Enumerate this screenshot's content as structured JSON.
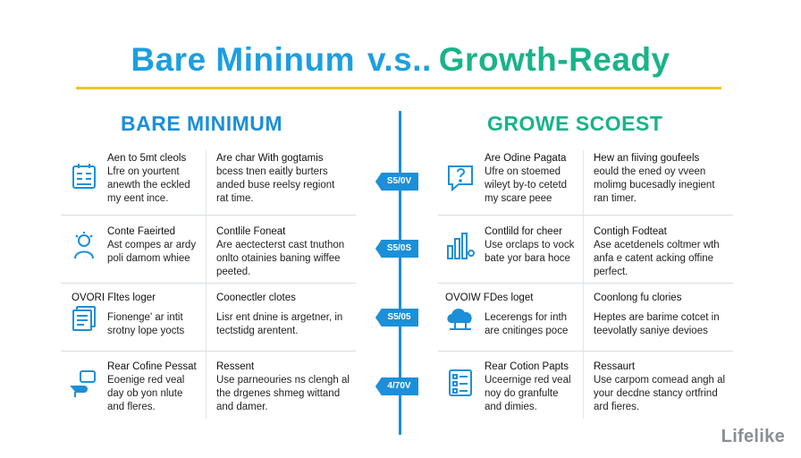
{
  "title": {
    "part1": "Bare Mininum",
    "part2": "v.s..",
    "part3": "Growth-Ready"
  },
  "columns": {
    "left_heading": "BARE MINIMUM",
    "right_heading": "GROWE SCOEST"
  },
  "badges": [
    "S5/0V",
    "S5/0S",
    "S5/05",
    "4/70V"
  ],
  "left_rows": [
    {
      "icon": "checklist-board-icon",
      "a_lines": [
        "Aen to 5mt cleols",
        "Lfre on yourtent",
        "anewth the eckled",
        "my eent ince."
      ],
      "b_lines": [
        "Are char With gogtamis",
        "bcess tnen eaitly burters",
        "anded buse reelsy regiont",
        "rat time."
      ]
    },
    {
      "icon": "person-idea-icon",
      "a_lines": [
        "Conte Faeirted",
        "Ast compes ar ardy",
        "poli damom whiee"
      ],
      "b_lines": [
        "Contlile Foneat",
        "Are aectecterst cast tnuthon",
        "onlto otainies baning wiffee",
        "peeted."
      ]
    },
    {
      "icon": "documents-stack-icon",
      "a_lines": [
        "OVORI Fltes loger",
        "Fionenge' ar intit",
        "srotny lope yocts"
      ],
      "b_lines": [
        "Coonectler clotes",
        "Lisr ent dnine is argetner, in",
        "tectstidg arentent."
      ]
    },
    {
      "icon": "hand-card-icon",
      "a_lines": [
        "Rear Cofine Pessat",
        "Eoenige red veal",
        "day ob yon nlute",
        "and fleres."
      ],
      "b_lines": [
        "Ressent",
        "Use parneouries ns clengh al",
        "the drgenes shmeg wittand",
        "and damer."
      ]
    }
  ],
  "right_rows": [
    {
      "icon": "question-chat-icon",
      "a_lines": [
        "Are Odine Pagata",
        "Ufre on stoemed",
        "wileyt by-to cetetd",
        "my scare peee"
      ],
      "b_lines": [
        "Hew an fiiving goufeels",
        "eould the ened oy vveen",
        "molimg bucesadly inegient",
        "ran timer."
      ]
    },
    {
      "icon": "chart-user-icon",
      "a_lines": [
        "Contlild for cheer",
        "Use orclaps to vock",
        "bate yor bara hoce"
      ],
      "b_lines": [
        "Contigh Fodteat",
        "Ase acetdenels coltmer wth",
        "anfa e catent acking offine",
        "perfect."
      ]
    },
    {
      "icon": "cloud-network-icon",
      "a_lines": [
        "OVOIW FDes loget",
        "Lecerengs for inth",
        "are cnitinges poce"
      ],
      "b_lines": [
        "Coonlong fu clories",
        "Heptes are barime cotcet in",
        "teevolatly saniye devioes"
      ]
    },
    {
      "icon": "checklist-form-icon",
      "a_lines": [
        "Rear Cotion Papts",
        "Uceernige red veal",
        "noy do granfulte",
        "and dimies."
      ],
      "b_lines": [
        "Ressaurt",
        "Use carpom comead angh al",
        "your decdne stancy ortfrind",
        "ard fieres."
      ]
    }
  ],
  "brand": "Lifelike",
  "colors": {
    "blue": "#1c9fe0",
    "green": "#19b38a",
    "accent_rule": "#f2c12e",
    "divider": "#1c8fd8"
  }
}
